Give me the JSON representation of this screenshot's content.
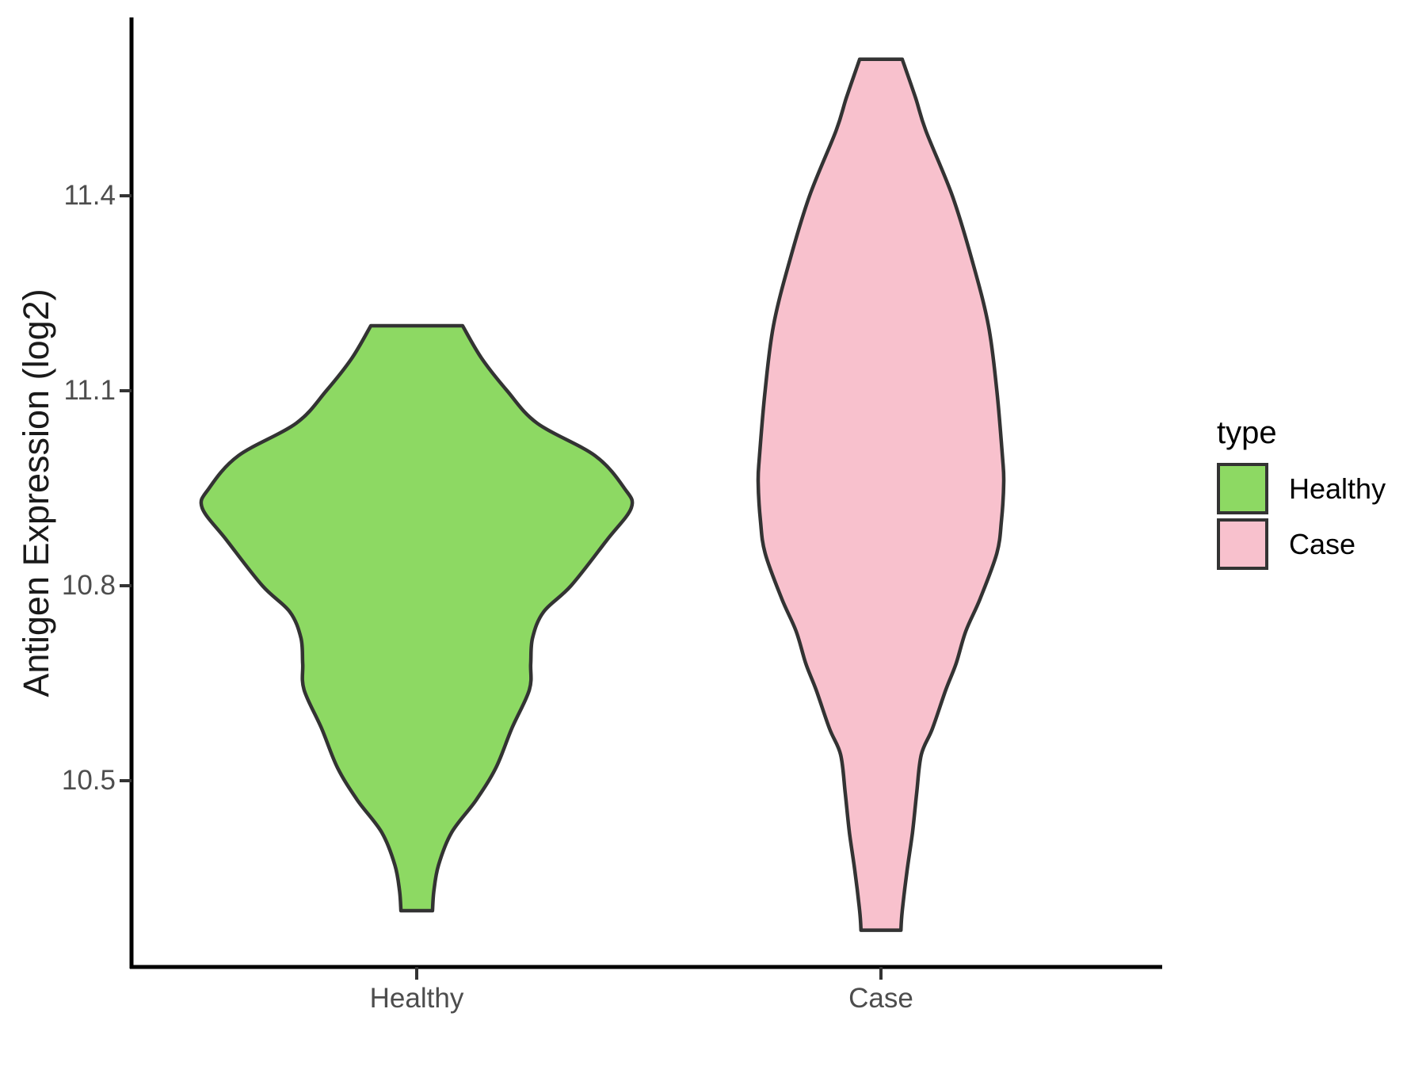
{
  "figure": {
    "background": "#ffffff"
  },
  "chart_data": {
    "type": "violin",
    "title": "",
    "xlabel": "",
    "ylabel": "Antigen Expression (log2)",
    "categories": [
      "Healthy",
      "Case"
    ],
    "x_tick_labels": [
      "Healthy",
      "Case"
    ],
    "y_ticks": [
      11.4,
      11.1,
      10.8,
      10.5
    ],
    "y_tick_labels": [
      "11.4",
      "11.1",
      "10.8",
      "10.5"
    ],
    "y_domain": [
      10.2,
      11.68
    ],
    "grid": "off",
    "legend": {
      "title": "type",
      "position": "right",
      "entries": [
        {
          "label": "Healthy",
          "color": "#8DD963"
        },
        {
          "label": "Case",
          "color": "#F8C1CD"
        }
      ]
    },
    "style": {
      "outline_color": "#333333",
      "axis_color": "#000000",
      "tick_color": "#333333",
      "tick_label_color": "#4d4d4d",
      "text_color": "#000000"
    },
    "series": [
      {
        "name": "Healthy",
        "fill": "#8DD963",
        "x": 1,
        "y_min": 10.3,
        "y_max": 11.2,
        "profile": [
          [
            11.2,
            0.099
          ],
          [
            11.15,
            0.14
          ],
          [
            11.1,
            0.195
          ],
          [
            11.05,
            0.26
          ],
          [
            11.0,
            0.385
          ],
          [
            10.95,
            0.448
          ],
          [
            10.92,
            0.463
          ],
          [
            10.87,
            0.41
          ],
          [
            10.8,
            0.333
          ],
          [
            10.76,
            0.274
          ],
          [
            10.72,
            0.25
          ],
          [
            10.68,
            0.246
          ],
          [
            10.64,
            0.243
          ],
          [
            10.58,
            0.205
          ],
          [
            10.52,
            0.171
          ],
          [
            10.47,
            0.128
          ],
          [
            10.42,
            0.075
          ],
          [
            10.37,
            0.047
          ],
          [
            10.33,
            0.037
          ],
          [
            10.3,
            0.034
          ]
        ]
      },
      {
        "name": "Case",
        "fill": "#F8C1CD",
        "x": 2,
        "y_min": 10.27,
        "y_max": 11.61,
        "profile": [
          [
            11.61,
            0.046
          ],
          [
            11.55,
            0.075
          ],
          [
            11.5,
            0.097
          ],
          [
            11.4,
            0.154
          ],
          [
            11.3,
            0.197
          ],
          [
            11.2,
            0.232
          ],
          [
            11.1,
            0.25
          ],
          [
            11.0,
            0.262
          ],
          [
            10.96,
            0.265
          ],
          [
            10.9,
            0.26
          ],
          [
            10.85,
            0.25
          ],
          [
            10.78,
            0.214
          ],
          [
            10.73,
            0.183
          ],
          [
            10.68,
            0.162
          ],
          [
            10.64,
            0.14
          ],
          [
            10.58,
            0.111
          ],
          [
            10.54,
            0.087
          ],
          [
            10.48,
            0.077
          ],
          [
            10.42,
            0.068
          ],
          [
            10.36,
            0.056
          ],
          [
            10.3,
            0.046
          ],
          [
            10.27,
            0.043
          ]
        ]
      }
    ]
  }
}
